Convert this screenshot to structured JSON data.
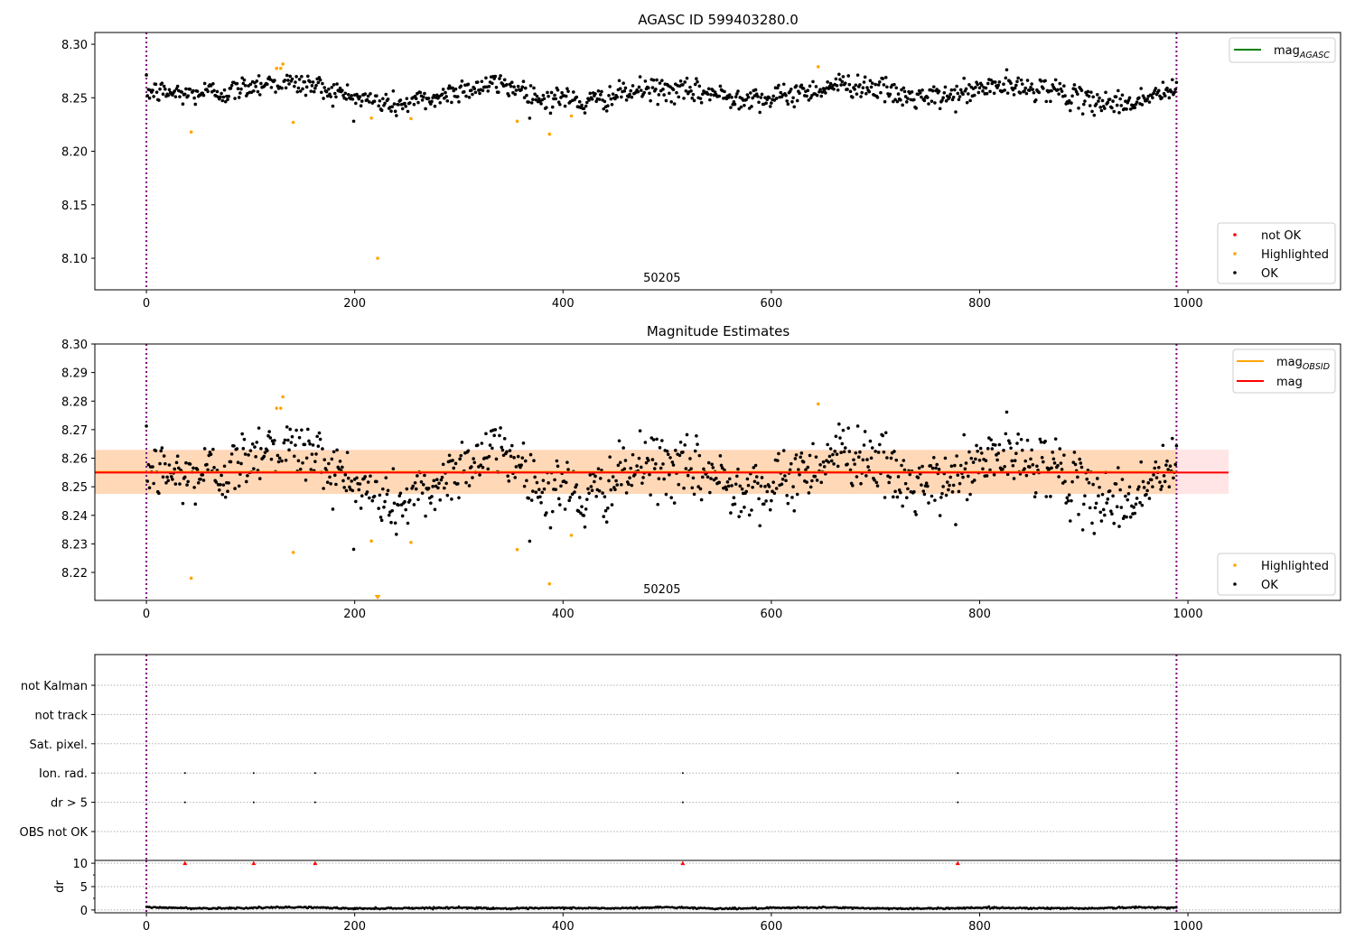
{
  "chart_data": [
    {
      "type": "scatter",
      "title": "AGASC ID 599403280.0",
      "annotation": "50205",
      "xlim": [
        -49.5,
        1146.5
      ],
      "ylim": [
        8.0705,
        8.311
      ],
      "xticks": [
        0,
        200,
        400,
        600,
        800,
        1000
      ],
      "yticks": [
        8.1,
        8.15,
        8.2,
        8.25,
        8.3
      ],
      "ytick_labels": [
        "8.10",
        "8.15",
        "8.20",
        "8.25",
        "8.30"
      ],
      "vlines": [
        0,
        989
      ],
      "legend_lines": [
        {
          "main": "mag",
          "sub": "AGASC",
          "color": "#008000"
        }
      ],
      "legend_points": [
        {
          "label": "not OK",
          "color": "#ff0000"
        },
        {
          "label": "Highlighted",
          "color": "#ffa500"
        },
        {
          "label": "OK",
          "color": "#000000"
        }
      ],
      "legend_placement": [
        "top-right",
        "bottom-right"
      ]
    },
    {
      "type": "scatter",
      "title": "Magnitude Estimates",
      "annotation": "50205",
      "xlim": [
        -49.5,
        1146.5
      ],
      "ylim": [
        8.2102,
        8.3
      ],
      "xticks": [
        0,
        200,
        400,
        600,
        800,
        1000
      ],
      "yticks": [
        8.22,
        8.23,
        8.24,
        8.25,
        8.26,
        8.27,
        8.28,
        8.29,
        8.3
      ],
      "ytick_labels": [
        "8.22",
        "8.23",
        "8.24",
        "8.25",
        "8.26",
        "8.27",
        "8.28",
        "8.29",
        "8.30"
      ],
      "mag": 8.255,
      "mag_band": [
        8.2475,
        8.263
      ],
      "mag_band_xmax": 1039,
      "mag_obsid": 8.2552,
      "mag_obsid_band": [
        8.2475,
        8.2628
      ],
      "mag_obsid_band_xmax": 989,
      "vlines": [
        0,
        989
      ],
      "legend_lines": [
        {
          "main": "mag",
          "sub": "OBSID",
          "color": "#ffa500"
        },
        {
          "main": "mag",
          "sub": "",
          "color": "#ff0000"
        }
      ],
      "legend_points": [
        {
          "label": "Highlighted",
          "color": "#ffa500"
        },
        {
          "label": "OK",
          "color": "#000000"
        }
      ],
      "legend_placement": [
        "top-right",
        "bottom-right"
      ]
    },
    {
      "type": "scatter",
      "title": "",
      "flag_rows": [
        "OBS not OK",
        "dr > 5",
        "Ion. rad.",
        "Sat. pixel.",
        "not track",
        "not Kalman"
      ],
      "flag_points": [
        {
          "row": "Ion. rad.",
          "x": [
            37,
            103,
            162,
            515,
            779
          ]
        },
        {
          "row": "dr > 5",
          "x": [
            37,
            103,
            162,
            515,
            779
          ]
        }
      ],
      "dr_ylabel": "dr",
      "dr_ylim": [
        -0.6,
        10.6
      ],
      "dr_yticks": [
        0,
        5,
        10
      ],
      "dr_ytick_labels": [
        "0",
        "5",
        "10"
      ],
      "dr_capped_points": {
        "x": [
          37,
          103,
          162,
          515,
          779
        ],
        "y": 10,
        "color": "#ff0000"
      },
      "dr_trend_step": 50,
      "dr_trend": [
        0.6,
        0.35,
        0.45,
        0.6,
        0.3,
        0.4,
        0.5,
        0.3,
        0.45,
        0.35,
        0.6,
        0.3,
        0.4,
        0.55,
        0.35,
        0.3,
        0.5,
        0.4,
        0.35,
        0.55,
        0.5
      ],
      "xticks": [
        0,
        200,
        400,
        600,
        800,
        1000
      ],
      "xlim": [
        -49.5,
        1146.5
      ],
      "vlines": [
        0,
        989
      ]
    }
  ],
  "series": {
    "x_range": [
      0,
      989
    ],
    "ok_trend_step": 20,
    "ok_trend_mag": [
      8.256,
      8.255,
      8.253,
      8.256,
      8.255,
      8.262,
      8.265,
      8.263,
      8.262,
      8.256,
      8.25,
      8.247,
      8.243,
      8.247,
      8.25,
      8.258,
      8.26,
      8.263,
      8.258,
      8.248,
      8.251,
      8.244,
      8.25,
      8.254,
      8.258,
      8.257,
      8.255,
      8.255,
      8.25,
      8.252,
      8.248,
      8.254,
      8.257,
      8.262,
      8.262,
      8.26,
      8.252,
      8.25,
      8.25,
      8.253,
      8.258,
      8.262,
      8.258,
      8.26,
      8.255,
      8.246,
      8.247,
      8.244,
      8.25,
      8.256
    ],
    "ok_noise_sd": 0.0055,
    "highlighted": [
      {
        "x": 43,
        "mag": 8.218
      },
      {
        "x": 125,
        "mag": 8.2775
      },
      {
        "x": 129,
        "mag": 8.2775
      },
      {
        "x": 131,
        "mag": 8.2815
      },
      {
        "x": 141,
        "mag": 8.227
      },
      {
        "x": 216,
        "mag": 8.231
      },
      {
        "x": 222,
        "mag": 8.1
      },
      {
        "x": 254,
        "mag": 8.2305
      },
      {
        "x": 356,
        "mag": 8.228
      },
      {
        "x": 387,
        "mag": 8.216
      },
      {
        "x": 408,
        "mag": 8.233
      },
      {
        "x": 645,
        "mag": 8.279
      }
    ]
  }
}
